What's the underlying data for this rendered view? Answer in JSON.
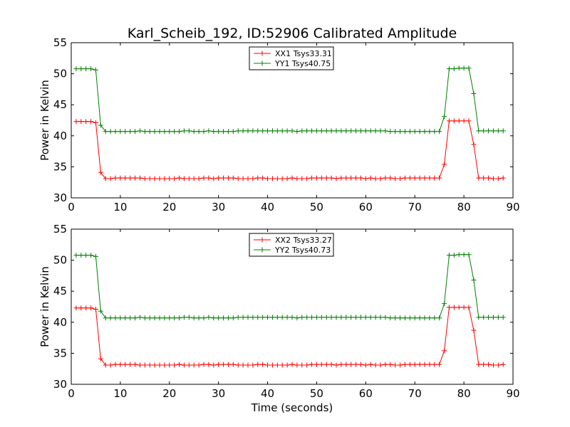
{
  "figure": {
    "title": "Karl_Scheib_192, ID:52906 Calibrated Amplitude"
  },
  "chart_data": [
    {
      "type": "line",
      "title": "Karl_Scheib_192, ID:52906 Calibrated Amplitude",
      "xlabel": "",
      "ylabel": "Power in Kelvin",
      "xlim": [
        0,
        90
      ],
      "ylim": [
        30,
        55
      ],
      "xticks": [
        0,
        10,
        20,
        30,
        40,
        50,
        60,
        70,
        80,
        90
      ],
      "yticks": [
        30,
        35,
        40,
        45,
        50,
        55
      ],
      "grid": false,
      "legend_position": "top-center",
      "x": [
        1,
        2,
        3,
        4,
        5,
        6,
        7,
        8,
        9,
        10,
        11,
        12,
        13,
        14,
        15,
        16,
        17,
        18,
        19,
        20,
        21,
        22,
        23,
        24,
        25,
        26,
        27,
        28,
        29,
        30,
        31,
        32,
        33,
        34,
        35,
        36,
        37,
        38,
        39,
        40,
        41,
        42,
        43,
        44,
        45,
        46,
        47,
        48,
        49,
        50,
        51,
        52,
        53,
        54,
        55,
        56,
        57,
        58,
        59,
        60,
        61,
        62,
        63,
        64,
        65,
        66,
        67,
        68,
        69,
        70,
        71,
        72,
        73,
        74,
        75,
        76,
        77,
        78,
        79,
        80,
        81,
        82,
        83,
        84,
        85,
        86,
        87,
        88
      ],
      "series": [
        {
          "name": "XX1 Tsys33.31",
          "color": "#ff0000",
          "values": [
            42.3,
            42.3,
            42.3,
            42.3,
            42.1,
            34.1,
            33.1,
            33.1,
            33.2,
            33.2,
            33.2,
            33.2,
            33.2,
            33.2,
            33.1,
            33.1,
            33.1,
            33.1,
            33.1,
            33.1,
            33.1,
            33.2,
            33.1,
            33.1,
            33.1,
            33.1,
            33.2,
            33.2,
            33.1,
            33.2,
            33.2,
            33.2,
            33.2,
            33.1,
            33.1,
            33.1,
            33.1,
            33.2,
            33.2,
            33.1,
            33.1,
            33.1,
            33.1,
            33.1,
            33.2,
            33.1,
            33.1,
            33.1,
            33.2,
            33.2,
            33.2,
            33.2,
            33.2,
            33.1,
            33.2,
            33.2,
            33.2,
            33.2,
            33.2,
            33.1,
            33.2,
            33.1,
            33.1,
            33.2,
            33.2,
            33.1,
            33.1,
            33.2,
            33.2,
            33.2,
            33.2,
            33.2,
            33.2,
            33.2,
            33.2,
            35.4,
            42.4,
            42.4,
            42.4,
            42.4,
            42.4,
            38.6,
            33.2,
            33.2,
            33.2,
            33.1,
            33.1,
            33.2
          ]
        },
        {
          "name": "YY1 Tsys40.75",
          "color": "#008000",
          "values": [
            50.8,
            50.8,
            50.8,
            50.8,
            50.6,
            41.7,
            40.7,
            40.7,
            40.7,
            40.7,
            40.7,
            40.7,
            40.7,
            40.8,
            40.7,
            40.7,
            40.7,
            40.7,
            40.7,
            40.7,
            40.7,
            40.7,
            40.8,
            40.8,
            40.7,
            40.7,
            40.7,
            40.8,
            40.7,
            40.7,
            40.7,
            40.7,
            40.7,
            40.8,
            40.8,
            40.8,
            40.8,
            40.8,
            40.8,
            40.8,
            40.8,
            40.8,
            40.8,
            40.8,
            40.8,
            40.7,
            40.8,
            40.8,
            40.8,
            40.8,
            40.8,
            40.8,
            40.8,
            40.8,
            40.8,
            40.8,
            40.8,
            40.8,
            40.8,
            40.8,
            40.8,
            40.8,
            40.8,
            40.8,
            40.7,
            40.7,
            40.7,
            40.7,
            40.7,
            40.7,
            40.7,
            40.7,
            40.7,
            40.7,
            40.7,
            43.1,
            50.8,
            50.8,
            50.9,
            50.9,
            50.9,
            46.8,
            40.8,
            40.8,
            40.8,
            40.8,
            40.8,
            40.8
          ]
        }
      ]
    },
    {
      "type": "line",
      "title": "",
      "xlabel": "Time (seconds)",
      "ylabel": "Power in Kelvin",
      "xlim": [
        0,
        90
      ],
      "ylim": [
        30,
        55
      ],
      "xticks": [
        0,
        10,
        20,
        30,
        40,
        50,
        60,
        70,
        80,
        90
      ],
      "yticks": [
        30,
        35,
        40,
        45,
        50,
        55
      ],
      "grid": false,
      "legend_position": "top-center",
      "x": [
        1,
        2,
        3,
        4,
        5,
        6,
        7,
        8,
        9,
        10,
        11,
        12,
        13,
        14,
        15,
        16,
        17,
        18,
        19,
        20,
        21,
        22,
        23,
        24,
        25,
        26,
        27,
        28,
        29,
        30,
        31,
        32,
        33,
        34,
        35,
        36,
        37,
        38,
        39,
        40,
        41,
        42,
        43,
        44,
        45,
        46,
        47,
        48,
        49,
        50,
        51,
        52,
        53,
        54,
        55,
        56,
        57,
        58,
        59,
        60,
        61,
        62,
        63,
        64,
        65,
        66,
        67,
        68,
        69,
        70,
        71,
        72,
        73,
        74,
        75,
        76,
        77,
        78,
        79,
        80,
        81,
        82,
        83,
        84,
        85,
        86,
        87,
        88
      ],
      "series": [
        {
          "name": "XX2 Tsys33.27",
          "color": "#ff0000",
          "values": [
            42.3,
            42.3,
            42.3,
            42.3,
            42.1,
            34.1,
            33.1,
            33.1,
            33.2,
            33.2,
            33.2,
            33.2,
            33.2,
            33.1,
            33.1,
            33.1,
            33.1,
            33.1,
            33.1,
            33.1,
            33.1,
            33.2,
            33.1,
            33.1,
            33.1,
            33.1,
            33.2,
            33.2,
            33.1,
            33.2,
            33.2,
            33.2,
            33.2,
            33.1,
            33.1,
            33.1,
            33.1,
            33.2,
            33.2,
            33.1,
            33.1,
            33.1,
            33.1,
            33.1,
            33.2,
            33.1,
            33.1,
            33.1,
            33.2,
            33.2,
            33.2,
            33.2,
            33.2,
            33.1,
            33.2,
            33.2,
            33.2,
            33.2,
            33.2,
            33.1,
            33.2,
            33.1,
            33.1,
            33.2,
            33.2,
            33.1,
            33.1,
            33.2,
            33.2,
            33.2,
            33.2,
            33.2,
            33.2,
            33.2,
            33.2,
            35.4,
            42.4,
            42.4,
            42.4,
            42.4,
            42.4,
            38.7,
            33.2,
            33.2,
            33.2,
            33.1,
            33.1,
            33.2
          ]
        },
        {
          "name": "YY2 Tsys40.73",
          "color": "#008000",
          "values": [
            50.8,
            50.8,
            50.8,
            50.8,
            50.6,
            41.8,
            40.7,
            40.7,
            40.7,
            40.7,
            40.7,
            40.7,
            40.7,
            40.8,
            40.7,
            40.7,
            40.7,
            40.7,
            40.7,
            40.7,
            40.7,
            40.7,
            40.8,
            40.8,
            40.7,
            40.7,
            40.7,
            40.8,
            40.7,
            40.7,
            40.7,
            40.7,
            40.7,
            40.8,
            40.8,
            40.8,
            40.8,
            40.8,
            40.8,
            40.8,
            40.8,
            40.8,
            40.8,
            40.8,
            40.8,
            40.7,
            40.8,
            40.8,
            40.8,
            40.8,
            40.8,
            40.8,
            40.8,
            40.8,
            40.8,
            40.8,
            40.8,
            40.8,
            40.8,
            40.8,
            40.8,
            40.8,
            40.8,
            40.8,
            40.7,
            40.7,
            40.7,
            40.7,
            40.7,
            40.7,
            40.7,
            40.7,
            40.7,
            40.7,
            40.7,
            43.0,
            50.8,
            50.8,
            50.9,
            50.9,
            50.9,
            46.8,
            40.8,
            40.8,
            40.8,
            40.8,
            40.8,
            40.8
          ]
        }
      ]
    }
  ]
}
